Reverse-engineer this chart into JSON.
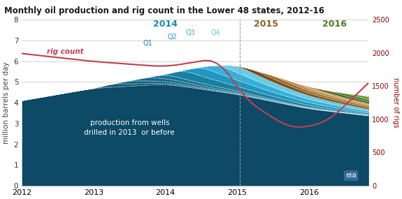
{
  "title": "Monthly oil production and rig count in the Lower 48 states, 2012-16",
  "ylabel_left": "million barrels per day",
  "ylabel_right": "number of rigs",
  "ylim_left": [
    0,
    8
  ],
  "ylim_right": [
    0,
    2500
  ],
  "yticks_left": [
    0,
    1,
    2,
    3,
    4,
    5,
    6,
    7,
    8
  ],
  "yticks_right": [
    0,
    500,
    1000,
    1500,
    2000,
    2500
  ],
  "bg_color": "#ffffff",
  "title_color": "#1a1a1a",
  "layers_colors": [
    "#0d4f6e",
    "#1a6880",
    "#1e8aaa",
    "#38b0d0",
    "#70cce8",
    "#7a5020",
    "#9a6828",
    "#b88040",
    "#cc9a58",
    "#3a5a18",
    "#507828",
    "#6a9838",
    "#8ab848"
  ],
  "rig_count_color": "#c04050",
  "dashed_line_color": "#999999",
  "dashed_line_x": 2015.04,
  "grid_color": "#cccccc",
  "white_dash_color": "#ffffff"
}
